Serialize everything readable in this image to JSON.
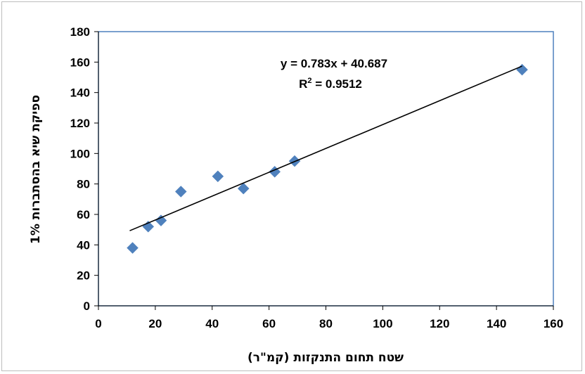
{
  "chart_data": {
    "type": "scatter",
    "xlabel": "שטח תחום התנקזות (קמ\"ר)",
    "ylabel": "ספיקת שיא בהסתברות 1%",
    "xlim": [
      0,
      160
    ],
    "ylim": [
      0,
      180
    ],
    "x_ticks": [
      "0",
      "20",
      "40",
      "60",
      "80",
      "100",
      "120",
      "140",
      "160"
    ],
    "y_ticks": [
      "0",
      "20",
      "40",
      "60",
      "80",
      "100",
      "120",
      "140",
      "160",
      "180"
    ],
    "grid": false,
    "legend": "none",
    "marker": "diamond",
    "marker_color": "#4f81bd",
    "plot_border_color": "#4f81bd",
    "points": [
      {
        "x": 12,
        "y": 38
      },
      {
        "x": 17.5,
        "y": 52
      },
      {
        "x": 22,
        "y": 56
      },
      {
        "x": 29,
        "y": 75
      },
      {
        "x": 42,
        "y": 85
      },
      {
        "x": 51,
        "y": 77
      },
      {
        "x": 62,
        "y": 88
      },
      {
        "x": 69,
        "y": 95
      },
      {
        "x": 149,
        "y": 155
      }
    ],
    "trendline": {
      "type": "linear",
      "slope": 0.783,
      "intercept": 40.687,
      "x_range": [
        11,
        149
      ],
      "color": "#000000",
      "equation": "y = 0.783x + 40.687",
      "r2_label": "R",
      "r2_exponent": "2",
      "r2_value": " = 0.9512"
    }
  }
}
